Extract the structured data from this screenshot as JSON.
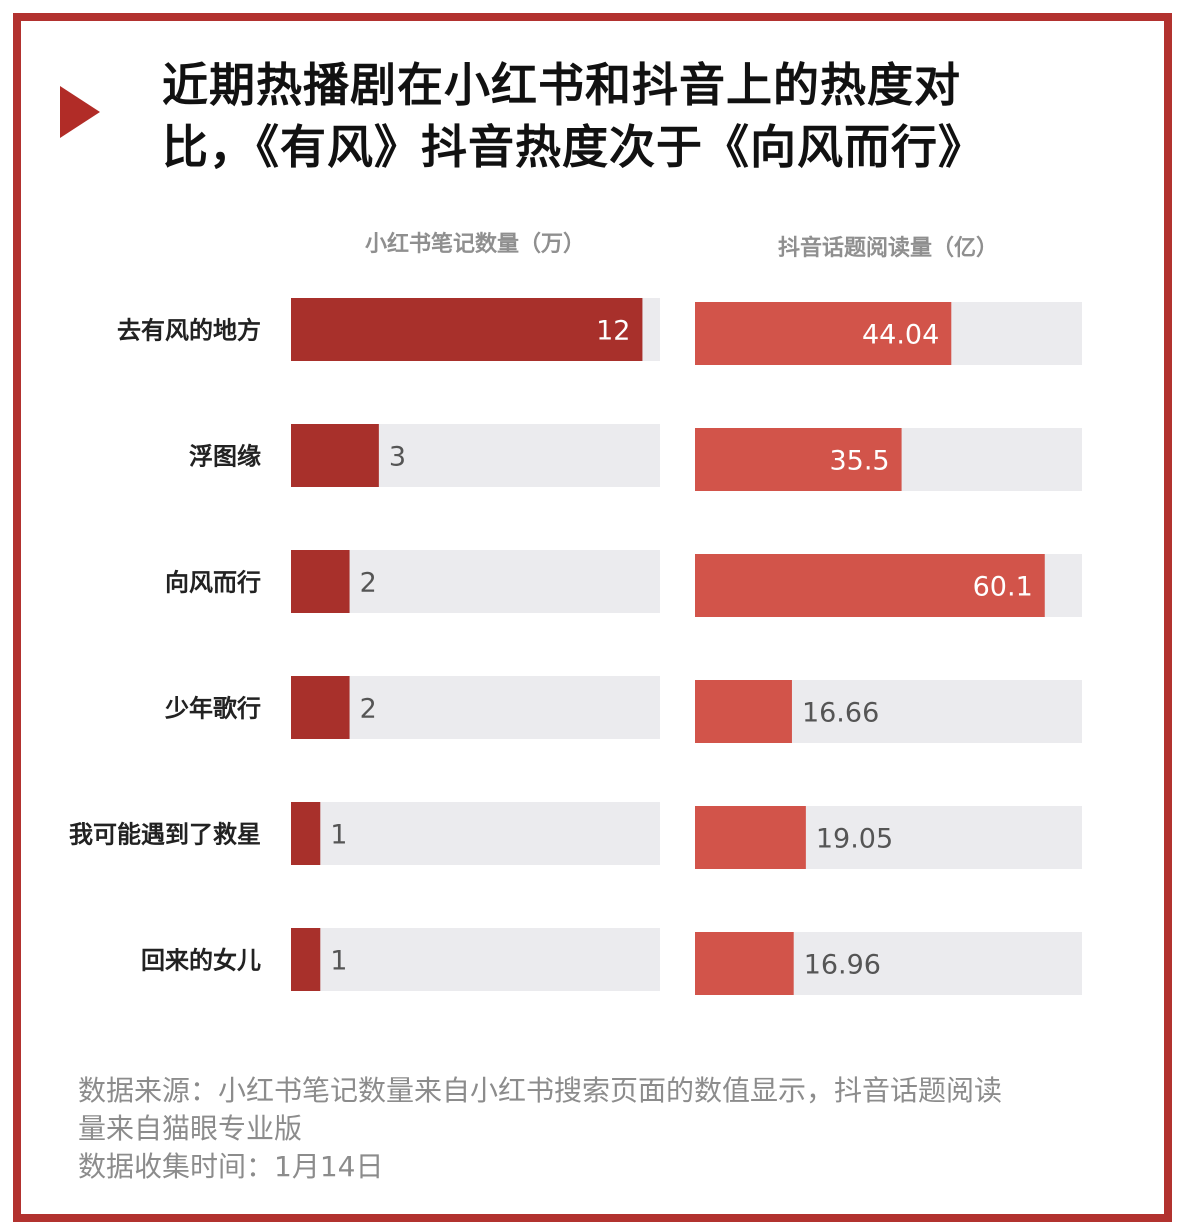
{
  "title_line1": "近期热播剧在小红书和抖音上的热度对",
  "title_line2": "比，《有风》抖音热度次于《向风而行》",
  "colors": {
    "border": "#b2322f",
    "left_bar": "#a8302b",
    "right_bar": "#d2544a",
    "track": "#ebebee",
    "label_inside": "#ffffff",
    "label_outside": "#555555"
  },
  "chart_data": {
    "type": "bar",
    "orientation": "horizontal",
    "categories": [
      "去有风的地方",
      "浮图缘",
      "向风而行",
      "少年歌行",
      "我可能遇到了救星",
      "回来的女儿"
    ],
    "series": [
      {
        "name": "小红书笔记数量（万）",
        "values": [
          12,
          3,
          2,
          2,
          1,
          1
        ],
        "labels": [
          "12",
          "3",
          "2",
          "2",
          "1",
          "1"
        ],
        "max": 12.6
      },
      {
        "name": "抖音话题阅读量（亿）",
        "values": [
          44.04,
          35.5,
          60.1,
          16.66,
          19.05,
          16.96
        ],
        "labels": [
          "44.04",
          "35.5",
          "60.1",
          "16.66",
          "19.05",
          "16.96"
        ],
        "max": 66.5
      }
    ]
  },
  "footer": {
    "line1": "数据来源：小红书笔记数量来自小红书搜索页面的数值显示，抖音话题阅读",
    "line2": "量来自猫眼专业版",
    "line3": "数据收集时间：1月14日"
  }
}
